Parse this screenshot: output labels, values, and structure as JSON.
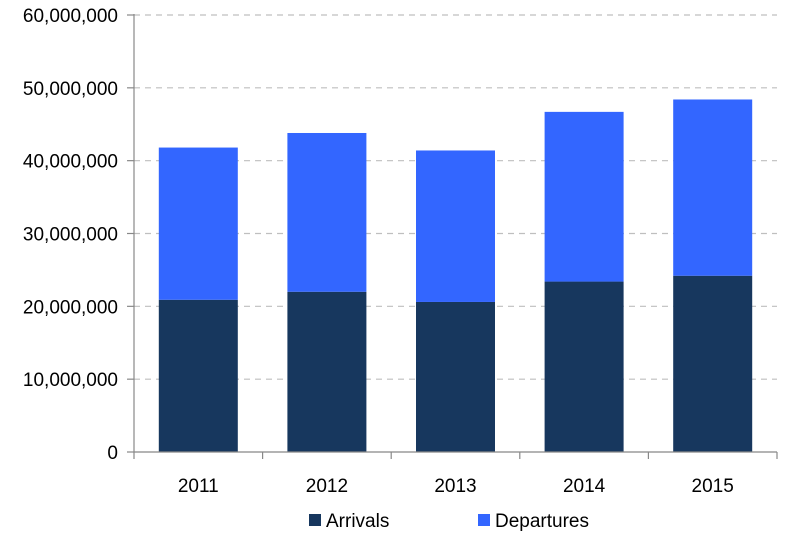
{
  "chart_data": {
    "type": "bar",
    "stacked": true,
    "categories": [
      "2011",
      "2012",
      "2013",
      "2014",
      "2015"
    ],
    "series": [
      {
        "name": "Arrivals",
        "color": "#17375e",
        "values": [
          20900000,
          22000000,
          20600000,
          23400000,
          24200000
        ]
      },
      {
        "name": "Departures",
        "color": "#3366ff",
        "values": [
          20900000,
          21800000,
          20800000,
          23300000,
          24200000
        ]
      }
    ],
    "ylim": [
      0,
      60000000
    ],
    "yticks": [
      0,
      10000000,
      20000000,
      30000000,
      40000000,
      50000000,
      60000000
    ],
    "ytick_labels": [
      "0",
      "10,000,000",
      "20,000,000",
      "30,000,000",
      "40,000,000",
      "50,000,000",
      "60,000,000"
    ],
    "grid": true,
    "legend_position": "bottom"
  }
}
